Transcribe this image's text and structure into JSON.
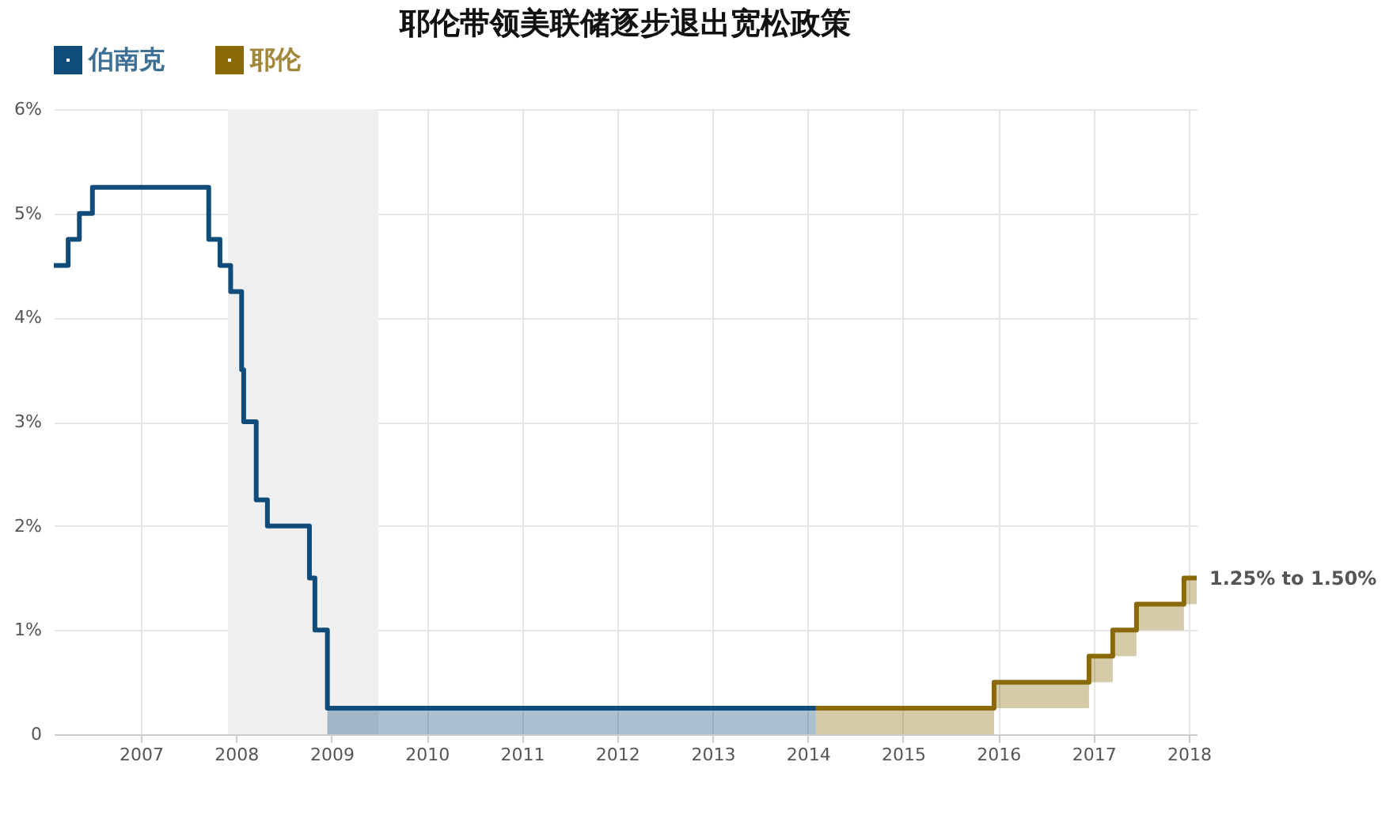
{
  "chart_data": {
    "type": "step",
    "title": "耶伦带领美联储逐步退出宽松政策",
    "series": [
      {
        "name": "伯南克",
        "color": "#0f4c7a",
        "x": [
          "2006-02-01",
          "2006-03-28",
          "2006-05-10",
          "2006-06-29",
          "2007-09-18",
          "2007-10-31",
          "2007-12-11",
          "2008-01-22",
          "2008-01-30",
          "2008-03-18",
          "2008-04-30",
          "2008-10-08",
          "2008-10-29",
          "2008-12-16",
          "2014-02-01"
        ],
        "values": [
          4.5,
          4.75,
          5.0,
          5.25,
          4.75,
          4.5,
          4.25,
          3.5,
          3.0,
          2.25,
          2.0,
          1.5,
          1.0,
          0.25,
          0.25
        ],
        "lower": [
          null,
          null,
          null,
          null,
          null,
          null,
          null,
          null,
          null,
          null,
          null,
          null,
          null,
          0,
          0
        ],
        "upper": [
          null,
          null,
          null,
          null,
          null,
          null,
          null,
          null,
          null,
          null,
          null,
          null,
          null,
          0.25,
          0.25
        ]
      },
      {
        "name": "耶伦",
        "color": "#8a6a08",
        "x": [
          "2014-02-01",
          "2015-12-16",
          "2016-12-14",
          "2017-03-15",
          "2017-06-14",
          "2017-12-13",
          "2018-01-31"
        ],
        "values": [
          0.25,
          0.5,
          0.75,
          1.0,
          1.25,
          1.5,
          1.5
        ],
        "lower": [
          0,
          0.25,
          0.5,
          0.75,
          1.0,
          1.25,
          1.25
        ],
        "upper": [
          0.25,
          0.5,
          0.75,
          1.0,
          1.25,
          1.5,
          1.5
        ]
      }
    ],
    "bands": [
      {
        "axis": "x",
        "from": "2007-12-01",
        "to": "2009-06-30",
        "color": "#efefef"
      }
    ],
    "annotations": [
      {
        "text": "1.25% to 1.50%",
        "x": "2018-01-31",
        "y": 1.5
      }
    ],
    "xlim": [
      "2006-02-01",
      "2018-01-31"
    ],
    "xticks": [
      {
        "value": "2007-01-01",
        "label": "2007"
      },
      {
        "value": "2008-01-01",
        "label": "2008"
      },
      {
        "value": "2009-01-01",
        "label": "2009"
      },
      {
        "value": "2010-01-01",
        "label": "2010"
      },
      {
        "value": "2011-01-01",
        "label": "2011"
      },
      {
        "value": "2012-01-01",
        "label": "2012"
      },
      {
        "value": "2013-01-01",
        "label": "2013"
      },
      {
        "value": "2014-01-01",
        "label": "2014"
      },
      {
        "value": "2015-01-01",
        "label": "2015"
      },
      {
        "value": "2016-01-01",
        "label": "2016"
      },
      {
        "value": "2017-01-01",
        "label": "2017"
      },
      {
        "value": "2018-01-01",
        "label": "2018"
      }
    ],
    "ylim": [
      0,
      6
    ],
    "yticks": [
      {
        "value": 0,
        "label": "0"
      },
      {
        "value": 1,
        "label": "1%"
      },
      {
        "value": 2,
        "label": "2%"
      },
      {
        "value": 3,
        "label": "3%"
      },
      {
        "value": 4,
        "label": "4%"
      },
      {
        "value": 5,
        "label": "5%"
      },
      {
        "value": 6,
        "label": "6%"
      }
    ],
    "grid": true,
    "legend": "top left",
    "line_style": "solid",
    "marker": "none"
  }
}
